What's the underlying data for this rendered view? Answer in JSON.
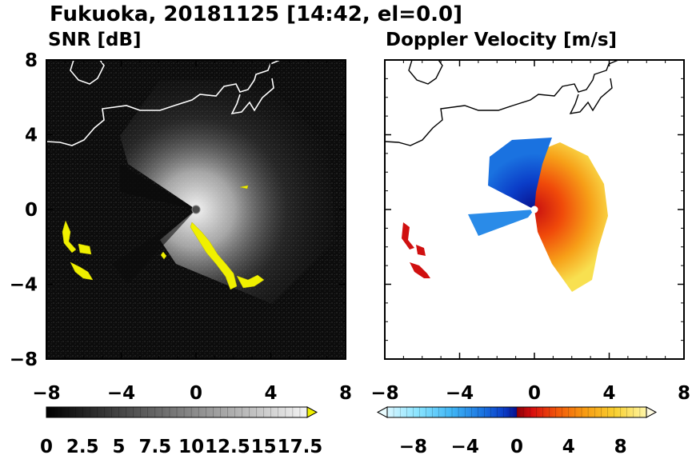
{
  "figure_title": "Fukuoka, 20181125 [14:42, el=0.0]",
  "chart_data": [
    {
      "type": "heatmap",
      "title": "SNR [dB]",
      "xlim": [
        -8,
        8
      ],
      "ylim": [
        -8,
        8
      ],
      "x_ticks": [
        "−8",
        "−4",
        "0",
        "4",
        "8"
      ],
      "y_ticks": [
        "8",
        "4",
        "0",
        "−4",
        "−8"
      ],
      "x_tick_values": [
        -8,
        -4,
        0,
        4,
        8
      ],
      "y_tick_values": [
        8,
        4,
        0,
        -4,
        -8
      ],
      "background_color": "#0a0a0a",
      "colorbar": {
        "tick_labels": [
          "0",
          "2.5",
          "5",
          "7.5",
          "10",
          "12.5",
          "15",
          "17.5"
        ],
        "tick_values": [
          0,
          2.5,
          5,
          7.5,
          10,
          12.5,
          15,
          17.5
        ],
        "range": [
          0,
          18
        ],
        "extend": "max",
        "extend_color": "#f0f000"
      },
      "strong_echo_color": "#f0f000",
      "radar_center": [
        0,
        0
      ]
    },
    {
      "type": "heatmap",
      "title": "Doppler Velocity [m/s]",
      "xlim": [
        -8,
        8
      ],
      "ylim": [
        -8,
        8
      ],
      "x_ticks": [
        "−8",
        "−4",
        "0",
        "4",
        "8"
      ],
      "y_ticks": [],
      "x_tick_values": [
        -8,
        -4,
        0,
        4,
        8
      ],
      "background_color": "#ffffff",
      "colorbar": {
        "tick_labels": [
          "−8",
          "−4",
          "0",
          "4",
          "8"
        ],
        "tick_values": [
          -8,
          -4,
          0,
          4,
          8
        ],
        "range": [
          -10,
          10
        ],
        "extend": "both",
        "colors": [
          "#d8f6ff",
          "#88e4ff",
          "#3fb5f5",
          "#1a72e0",
          "#0b3dc8",
          "#08108c",
          "#8c0008",
          "#d80e0e",
          "#f25a0a",
          "#f79a12",
          "#f8d030",
          "#fff6a8"
        ]
      },
      "radar_center": [
        0,
        0
      ]
    }
  ]
}
